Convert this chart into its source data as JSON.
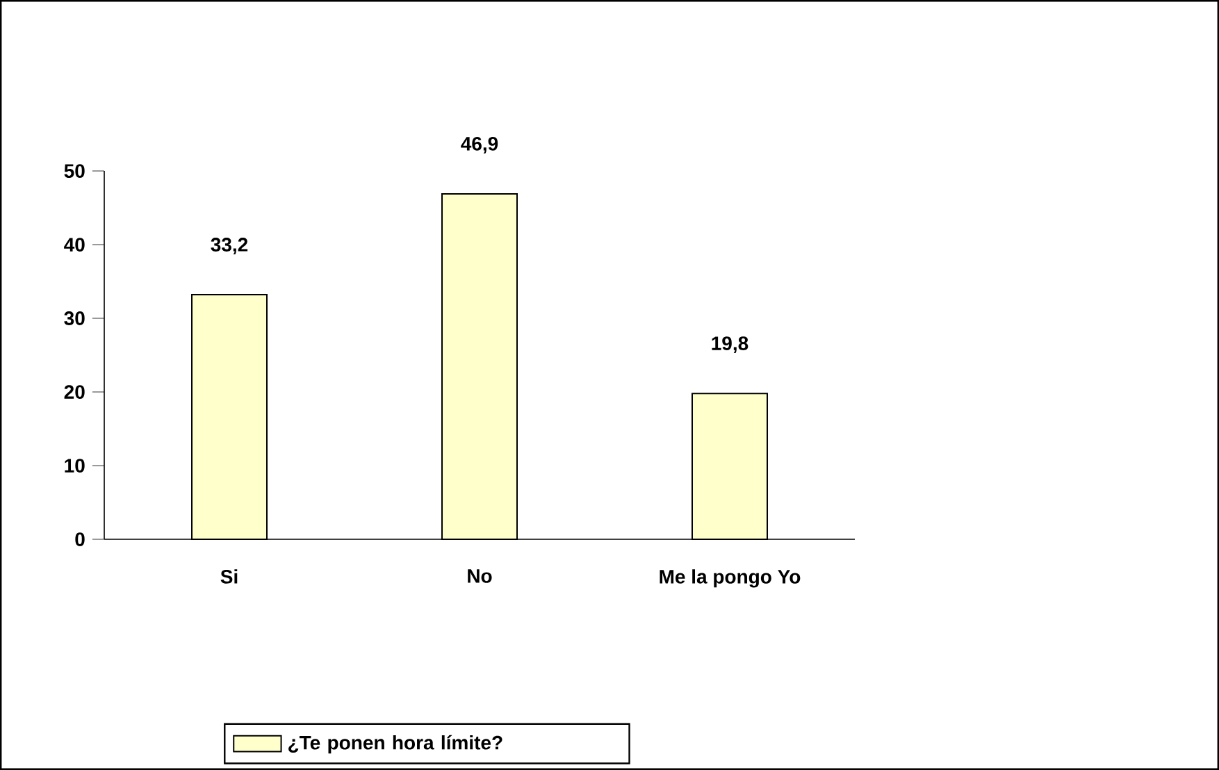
{
  "chart_data": {
    "type": "bar",
    "categories": [
      "Si",
      "No",
      "Me la pongo Yo"
    ],
    "series": [
      {
        "name": "¿Te ponen hora límite?",
        "color": "#ffffcc",
        "values": [
          33.2,
          46.9,
          19.8
        ],
        "value_labels": [
          "33,2",
          "46,9",
          "19,8"
        ]
      }
    ],
    "ylim": [
      0,
      50
    ],
    "yticks": [
      0,
      10,
      20,
      30,
      40,
      50
    ],
    "grid": false,
    "legend": "bottom"
  }
}
